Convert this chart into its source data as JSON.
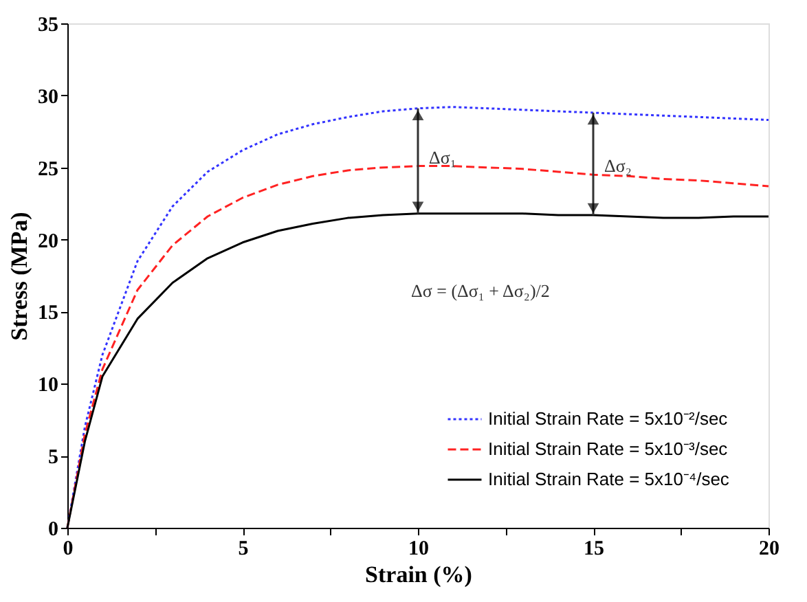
{
  "chart_data": {
    "type": "line",
    "xlabel": "Strain (%)",
    "ylabel": "Stress (MPa)",
    "x": [
      0,
      0.5,
      1,
      2,
      3,
      4,
      5,
      6,
      7,
      8,
      9,
      10,
      11,
      12,
      13,
      14,
      15,
      16,
      17,
      18,
      19,
      20
    ],
    "series": [
      {
        "name": "Initial Strain Rate = 5x10⁻²/sec",
        "color": "#3333ff",
        "line_style": "dotted",
        "values": [
          0,
          7,
          12,
          18.5,
          22.3,
          24.7,
          26.2,
          27.3,
          28,
          28.5,
          28.9,
          29.1,
          29.2,
          29.1,
          29,
          28.9,
          28.8,
          28.7,
          28.6,
          28.5,
          28.4,
          28.3
        ]
      },
      {
        "name": "Initial Strain Rate = 5x10⁻³/sec",
        "color": "#ff2222",
        "line_style": "dashed",
        "values": [
          0,
          6.5,
          11,
          16.5,
          19.6,
          21.6,
          22.9,
          23.8,
          24.4,
          24.8,
          25,
          25.1,
          25.1,
          25,
          24.9,
          24.7,
          24.5,
          24.4,
          24.2,
          24.1,
          23.9,
          23.7
        ]
      },
      {
        "name": "Initial Strain Rate = 5x10⁻⁴/sec",
        "color": "#000000",
        "line_style": "solid",
        "values": [
          0,
          6,
          10.5,
          14.5,
          17,
          18.7,
          19.8,
          20.6,
          21.1,
          21.5,
          21.7,
          21.8,
          21.8,
          21.8,
          21.8,
          21.7,
          21.7,
          21.6,
          21.5,
          21.5,
          21.6,
          21.6
        ]
      }
    ],
    "xlim": [
      0,
      20
    ],
    "ylim": [
      0,
      35
    ],
    "xticks": [
      0,
      {
        "value": 2.5,
        "label": null
      },
      5,
      {
        "value": 7.5,
        "label": null
      },
      10,
      {
        "value": 12.5,
        "label": null
      },
      15,
      {
        "value": 17.5,
        "label": null
      },
      20
    ],
    "yticks": [
      0,
      5,
      10,
      15,
      20,
      25,
      30,
      35
    ],
    "annotations": [
      {
        "text": "Δσ₁",
        "x": 10,
        "y": 25.1
      },
      {
        "text": "Δσ₂",
        "x": 15,
        "y": 24.5
      },
      "Δσ = (Δσ₁ + Δσ₂)/2"
    ],
    "legend": "bottom right",
    "grid": false,
    "marker": "none"
  }
}
